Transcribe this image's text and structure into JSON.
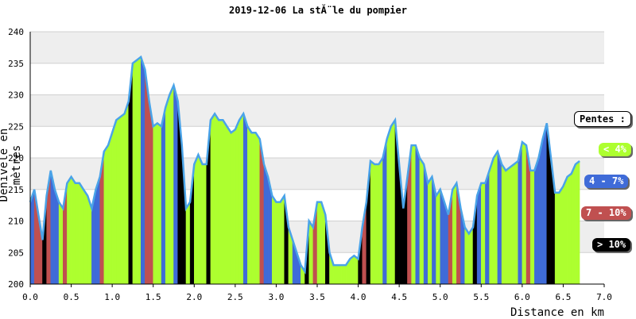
{
  "chart_data": {
    "type": "area",
    "title": "2019-12-06 La stĂ¨le du pompier",
    "xlabel": "Distance en km",
    "ylabel": "Dénivelé en mètres",
    "xlim": [
      0,
      7.0
    ],
    "ylim": [
      200,
      240
    ],
    "x_ticks": [
      "0.0",
      "0.5",
      "1.0",
      "1.5",
      "2.0",
      "2.5",
      "3.0",
      "3.5",
      "4.0",
      "4.5",
      "5.0",
      "5.5",
      "6.0",
      "6.5",
      "7.0"
    ],
    "y_ticks": [
      "200",
      "205",
      "210",
      "215",
      "220",
      "225",
      "230",
      "235",
      "240"
    ],
    "grid": true,
    "profile_color": "#4aa3e8",
    "band_color": "#eeeeee",
    "x": [
      0,
      0.05,
      0.1,
      0.15,
      0.2,
      0.25,
      0.3,
      0.35,
      0.4,
      0.45,
      0.5,
      0.55,
      0.6,
      0.65,
      0.7,
      0.75,
      0.8,
      0.85,
      0.9,
      0.95,
      1.0,
      1.05,
      1.1,
      1.15,
      1.2,
      1.25,
      1.3,
      1.35,
      1.4,
      1.45,
      1.5,
      1.55,
      1.6,
      1.65,
      1.7,
      1.75,
      1.8,
      1.85,
      1.9,
      1.95,
      2.0,
      2.05,
      2.1,
      2.15,
      2.2,
      2.25,
      2.3,
      2.35,
      2.4,
      2.45,
      2.5,
      2.55,
      2.6,
      2.65,
      2.7,
      2.75,
      2.8,
      2.85,
      2.9,
      2.95,
      3.0,
      3.05,
      3.1,
      3.15,
      3.2,
      3.25,
      3.3,
      3.35,
      3.4,
      3.45,
      3.5,
      3.55,
      3.6,
      3.65,
      3.7,
      3.75,
      3.8,
      3.85,
      3.9,
      3.95,
      4.0,
      4.05,
      4.1,
      4.15,
      4.2,
      4.25,
      4.3,
      4.35,
      4.4,
      4.45,
      4.5,
      4.55,
      4.6,
      4.65,
      4.7,
      4.75,
      4.8,
      4.85,
      4.9,
      4.95,
      5.0,
      5.05,
      5.1,
      5.15,
      5.2,
      5.25,
      5.3,
      5.35,
      5.4,
      5.45,
      5.5,
      5.55,
      5.6,
      5.65,
      5.7,
      5.75,
      5.8,
      5.85,
      5.9,
      5.95,
      6.0,
      6.05,
      6.1,
      6.15,
      6.2,
      6.25,
      6.3,
      6.35,
      6.4,
      6.45,
      6.5,
      6.55,
      6.6,
      6.65,
      6.7
    ],
    "y": [
      213,
      215,
      211,
      207,
      214,
      218,
      215,
      213,
      212,
      216,
      217,
      216,
      216,
      215,
      214,
      212,
      215,
      217,
      221,
      222,
      224,
      226,
      226.5,
      227,
      229,
      235,
      235.5,
      236,
      234,
      229,
      225,
      225.5,
      225,
      228,
      230,
      231.5,
      229,
      222,
      212,
      213,
      219,
      220.5,
      219,
      219,
      226,
      227,
      226,
      226,
      225,
      224,
      224.5,
      226,
      227,
      225,
      224,
      224,
      223,
      219,
      217,
      214,
      213,
      213,
      214,
      209,
      207,
      205,
      203,
      202,
      210,
      209,
      213,
      213,
      211,
      205,
      203,
      203,
      203,
      203,
      204,
      204.5,
      204,
      209,
      213,
      219.5,
      219,
      219,
      220,
      223,
      225,
      226,
      219,
      212,
      217,
      222,
      222,
      220,
      219,
      216,
      217,
      214,
      215,
      213,
      211,
      215,
      216,
      212,
      209,
      208,
      209,
      214,
      216,
      216,
      218,
      220,
      221,
      219,
      218,
      218.5,
      219,
      219.5,
      222.5,
      222,
      218,
      218,
      220,
      223,
      225.5,
      220,
      214.5,
      214.5,
      215.5,
      217,
      217.5,
      219,
      219.5
    ],
    "slope_classes": [
      {
        "label": "< 4%",
        "color": "#adff2f",
        "text_color": "#ffffff"
      },
      {
        "label": "4 - 7%",
        "color": "#3f6bd8",
        "text_color": "#ffffff"
      },
      {
        "label": "7 - 10%",
        "color": "#c05050",
        "text_color": "#ffffff"
      },
      {
        "label": "> 10%",
        "color": "#000000",
        "text_color": "#ffffff"
      }
    ],
    "legend_title": "Pentes :",
    "legend_position": "right"
  }
}
